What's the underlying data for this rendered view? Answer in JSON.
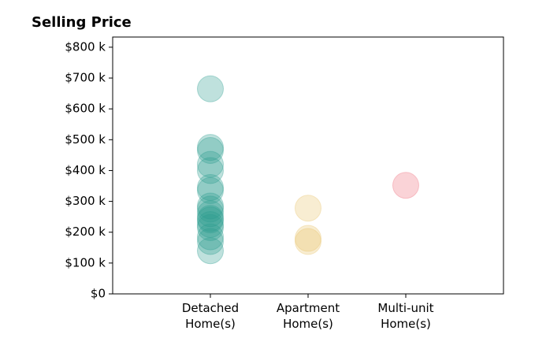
{
  "chart_data": {
    "type": "strip",
    "title": "Selling Price",
    "categories": [
      "Detached\nHome(s)",
      "Apartment\nHome(s)",
      "Multi-unit\nHome(s)"
    ],
    "series": [
      {
        "color": "#2a9d8f",
        "values": [
          665,
          475,
          465,
          420,
          400,
          345,
          335,
          285,
          275,
          260,
          245,
          240,
          225,
          215,
          185,
          170,
          140
        ]
      },
      {
        "color": "#e9c46a",
        "values": [
          278,
          180,
          170
        ]
      },
      {
        "color": "#ee6c7a",
        "values": [
          352
        ]
      }
    ],
    "ylim": [
      0,
      833
    ],
    "yticks": [
      {
        "value": 0,
        "label": "$0"
      },
      {
        "value": 100,
        "label": "$100 k"
      },
      {
        "value": 200,
        "label": "$200 k"
      },
      {
        "value": 300,
        "label": "$300 k"
      },
      {
        "value": 400,
        "label": "$400 k"
      },
      {
        "value": 500,
        "label": "$500 k"
      },
      {
        "value": 600,
        "label": "$600 k"
      },
      {
        "value": 700,
        "label": "$700 k"
      },
      {
        "value": 800,
        "label": "$800 k"
      }
    ],
    "grid": false
  }
}
